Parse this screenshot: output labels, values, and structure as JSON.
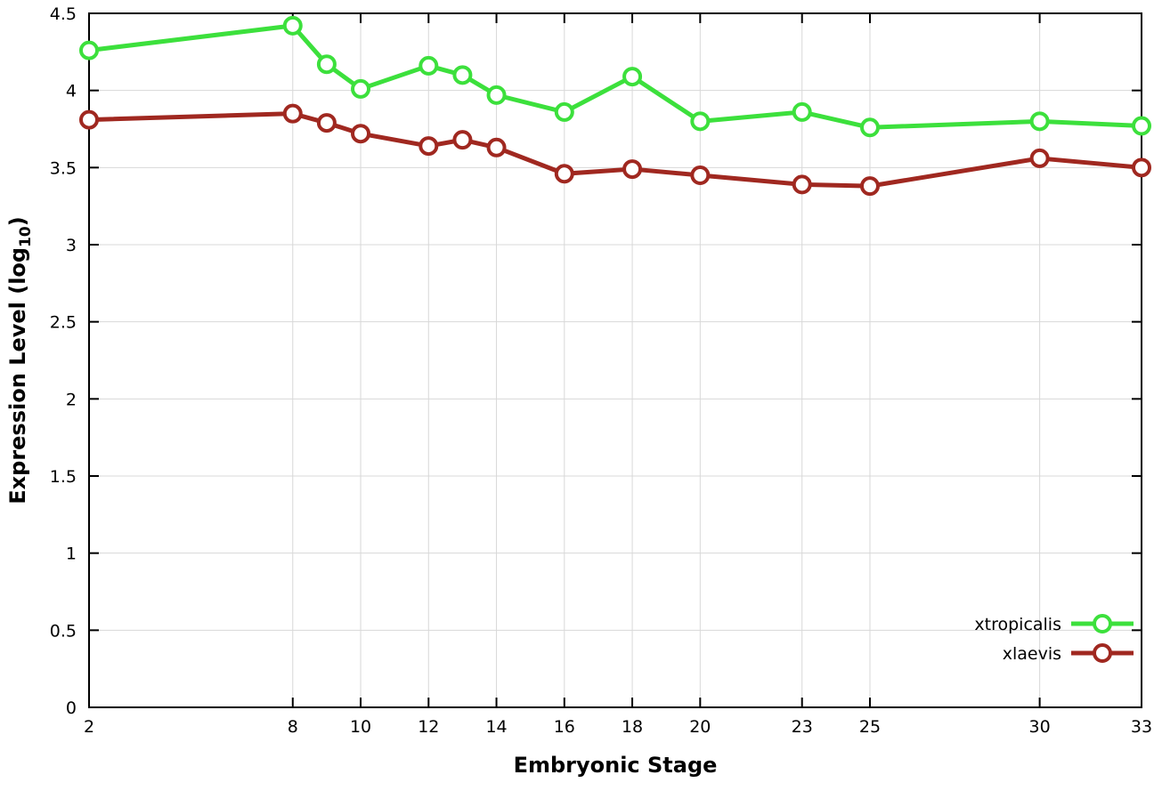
{
  "page": {
    "background": "#ffffff"
  },
  "chart_data": {
    "type": "line",
    "title": "",
    "xlabel": "Embryonic Stage",
    "ylabel": {
      "pre": "Expression Level (log",
      "sub": "10",
      "post": ")"
    },
    "xlim": [
      2,
      33
    ],
    "ylim": [
      0,
      4.5
    ],
    "xticks": [
      2,
      8,
      10,
      12,
      14,
      16,
      18,
      20,
      23,
      25,
      30,
      33
    ],
    "xtick_labels": [
      "2",
      "8",
      "10",
      "12",
      "14",
      "16",
      "18",
      "20",
      "23",
      "25",
      "30",
      "33"
    ],
    "yticks": [
      0,
      0.5,
      1,
      1.5,
      2,
      2.5,
      3,
      3.5,
      4,
      4.5
    ],
    "ytick_labels": [
      "0",
      "0.5",
      "1",
      "1.5",
      "2",
      "2.5",
      "3",
      "3.5",
      "4",
      "4.5"
    ],
    "grid": true,
    "legend_position": "bottom-right",
    "x": [
      2,
      8,
      9,
      10,
      12,
      13,
      14,
      16,
      18,
      20,
      23,
      25,
      30,
      33
    ],
    "series": [
      {
        "name": "xtropicalis",
        "color": "#3ce03c",
        "values": [
          4.26,
          4.42,
          4.17,
          4.01,
          4.16,
          4.1,
          3.97,
          3.86,
          4.09,
          3.8,
          3.86,
          3.76,
          3.8,
          3.77
        ]
      },
      {
        "name": "xlaevis",
        "color": "#a02820",
        "values": [
          3.81,
          3.85,
          3.79,
          3.72,
          3.64,
          3.68,
          3.63,
          3.46,
          3.49,
          3.45,
          3.39,
          3.38,
          3.56,
          3.5
        ]
      }
    ],
    "style": {
      "grid_color": "#d8d8d8",
      "axis_color": "#000000",
      "marker_fill": "#ffffff",
      "line_width": 5,
      "marker_radius": 9,
      "marker_stroke": 4
    }
  }
}
